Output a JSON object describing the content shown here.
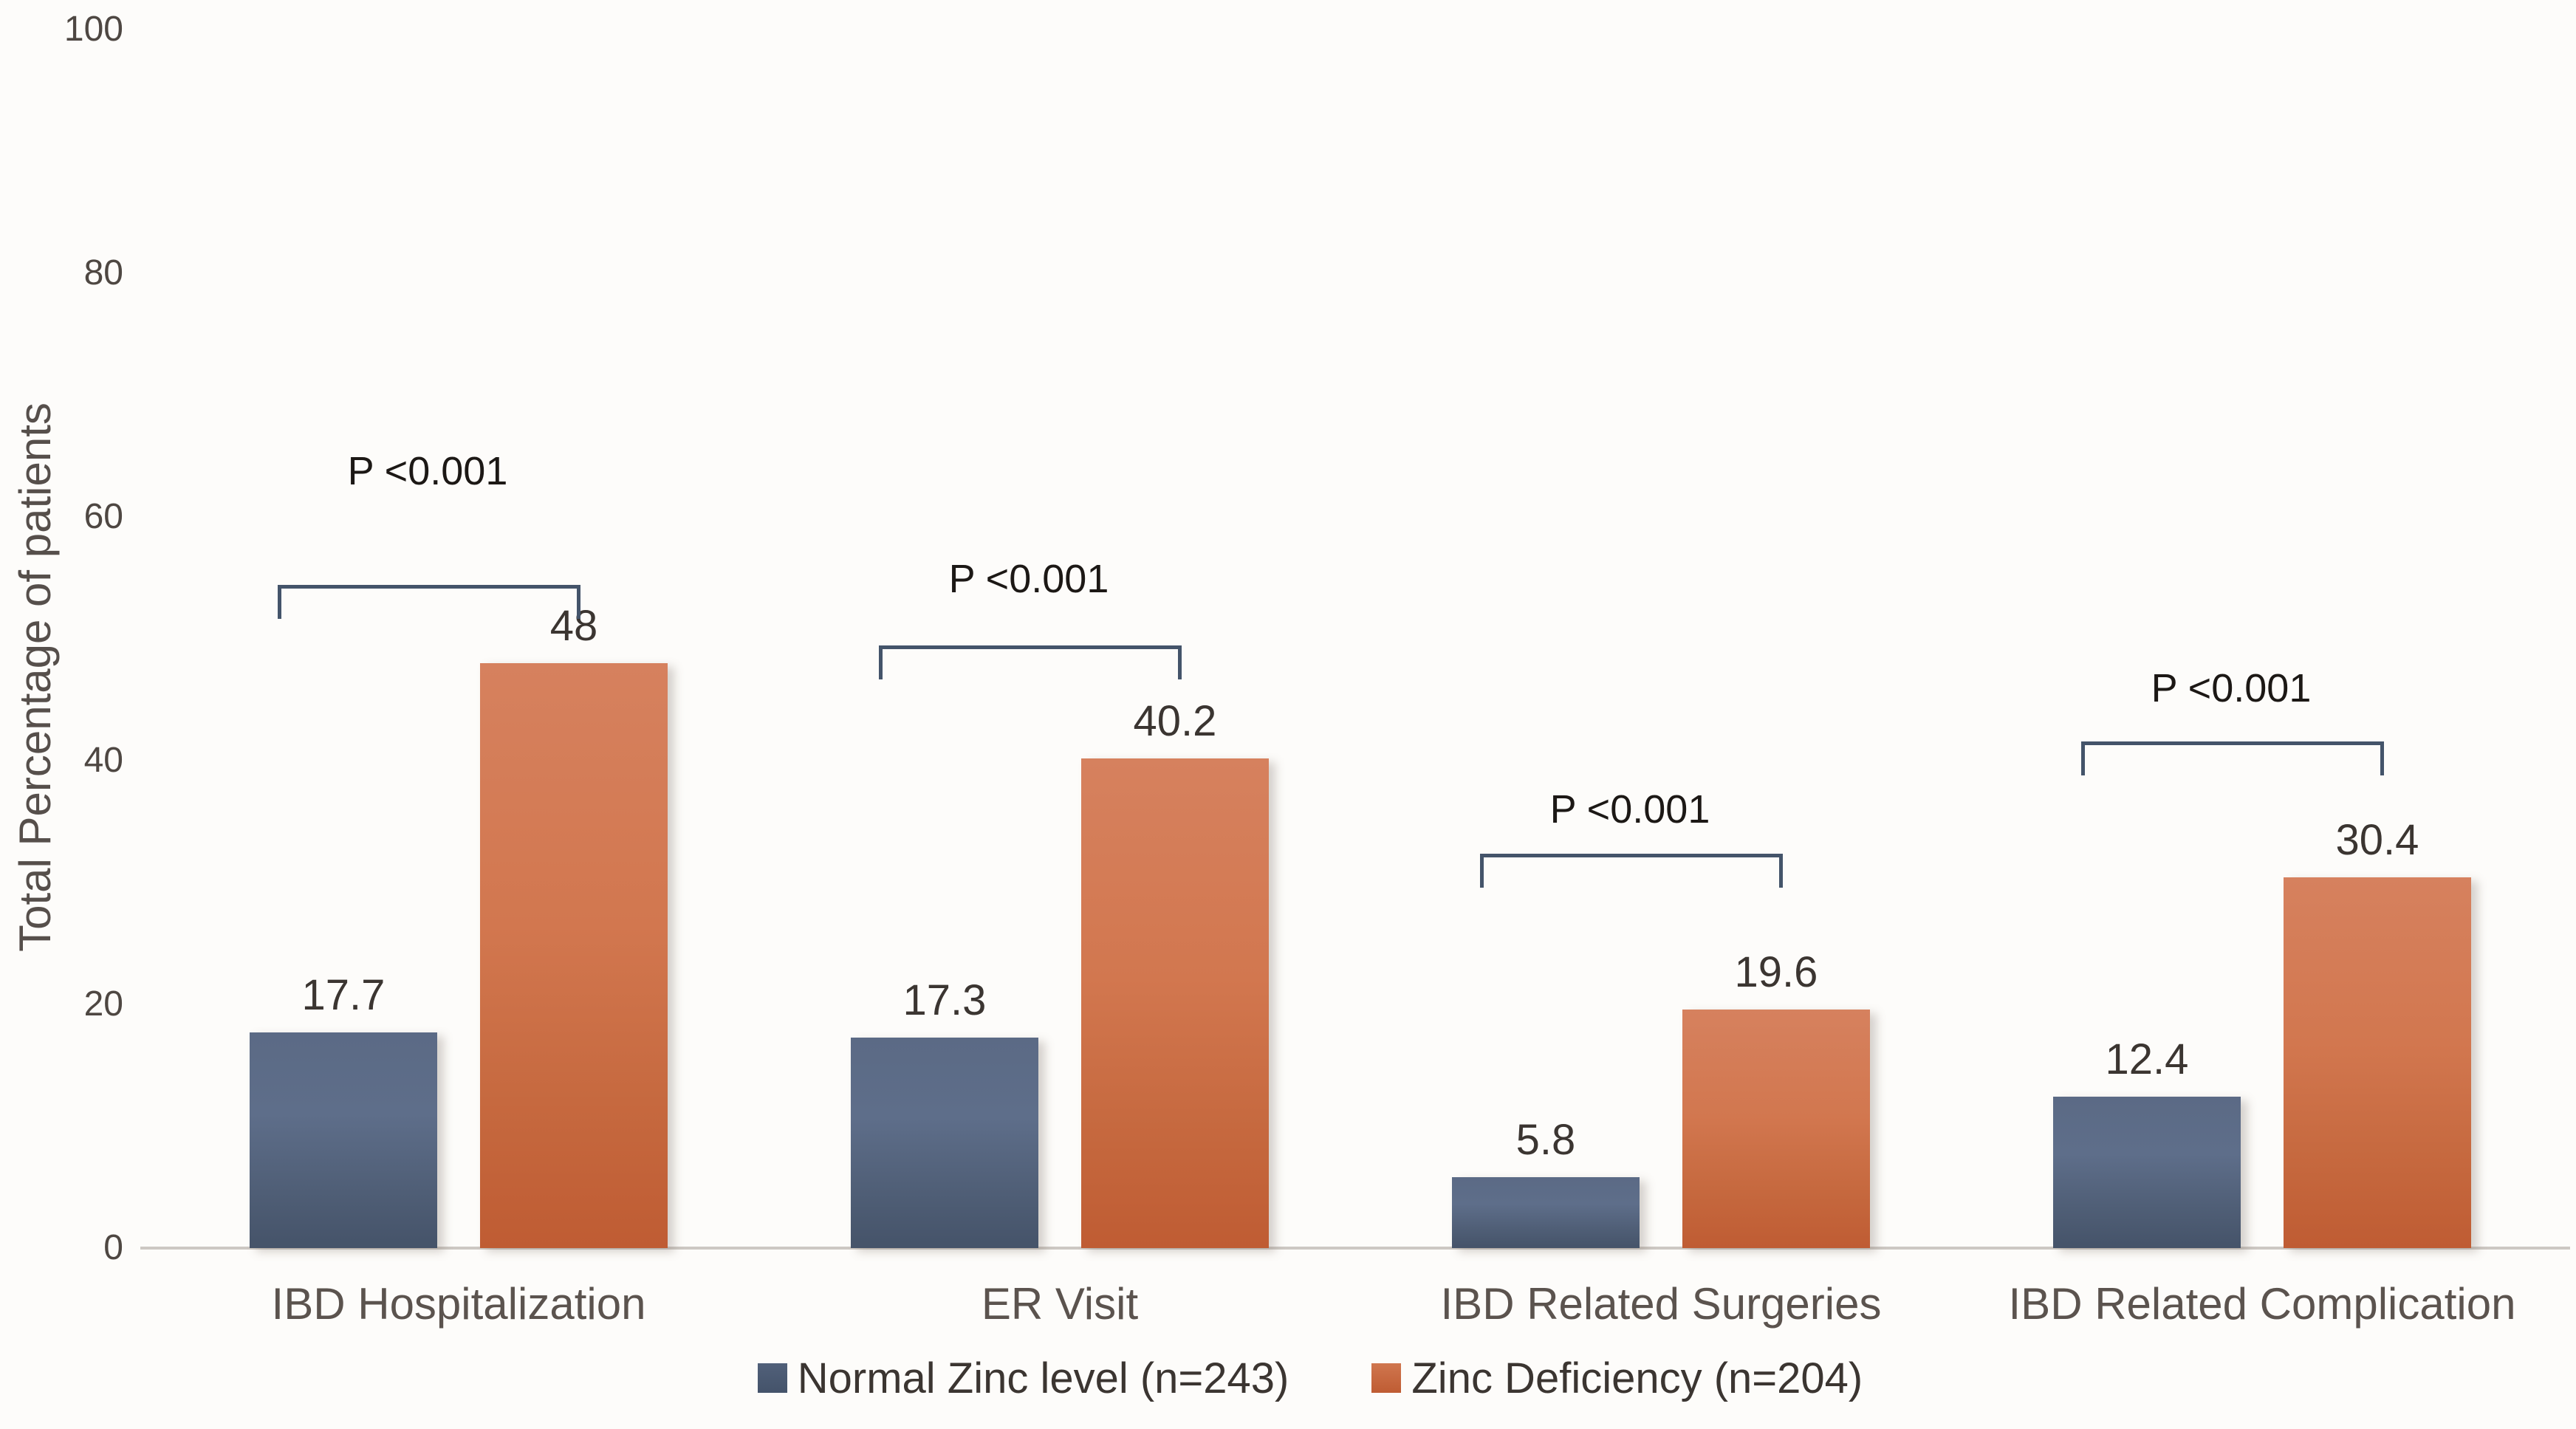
{
  "chart_data": {
    "type": "bar",
    "title": "",
    "ylabel": "Total Percentage of patients",
    "xlabel": "",
    "ylim": [
      0,
      100
    ],
    "yticks": [
      "0",
      "20",
      "40",
      "60",
      "80",
      "100"
    ],
    "grid": false,
    "legend_position": "bottom",
    "categories": [
      "IBD Hospitalization",
      "ER Visit",
      "IBD Related Surgeries",
      "IBD Related Complication"
    ],
    "series": [
      {
        "name": "Normal Zinc level (n=243)",
        "color": "#44546A",
        "values": [
          17.7,
          17.3,
          5.8,
          12.4
        ],
        "labels": [
          "17.7",
          "17.3",
          "5.8",
          "12.4"
        ]
      },
      {
        "name": "Zinc Deficiency (n=204)",
        "color": "#C8693F",
        "values": [
          48,
          40.2,
          19.6,
          30.4
        ],
        "labels": [
          "48",
          "40.2",
          "19.6",
          "30.4"
        ]
      }
    ],
    "p_values": [
      "P <0.001",
      "P <0.001",
      "P <0.001",
      "P <0.001"
    ],
    "annotation_color": "#44546A"
  }
}
